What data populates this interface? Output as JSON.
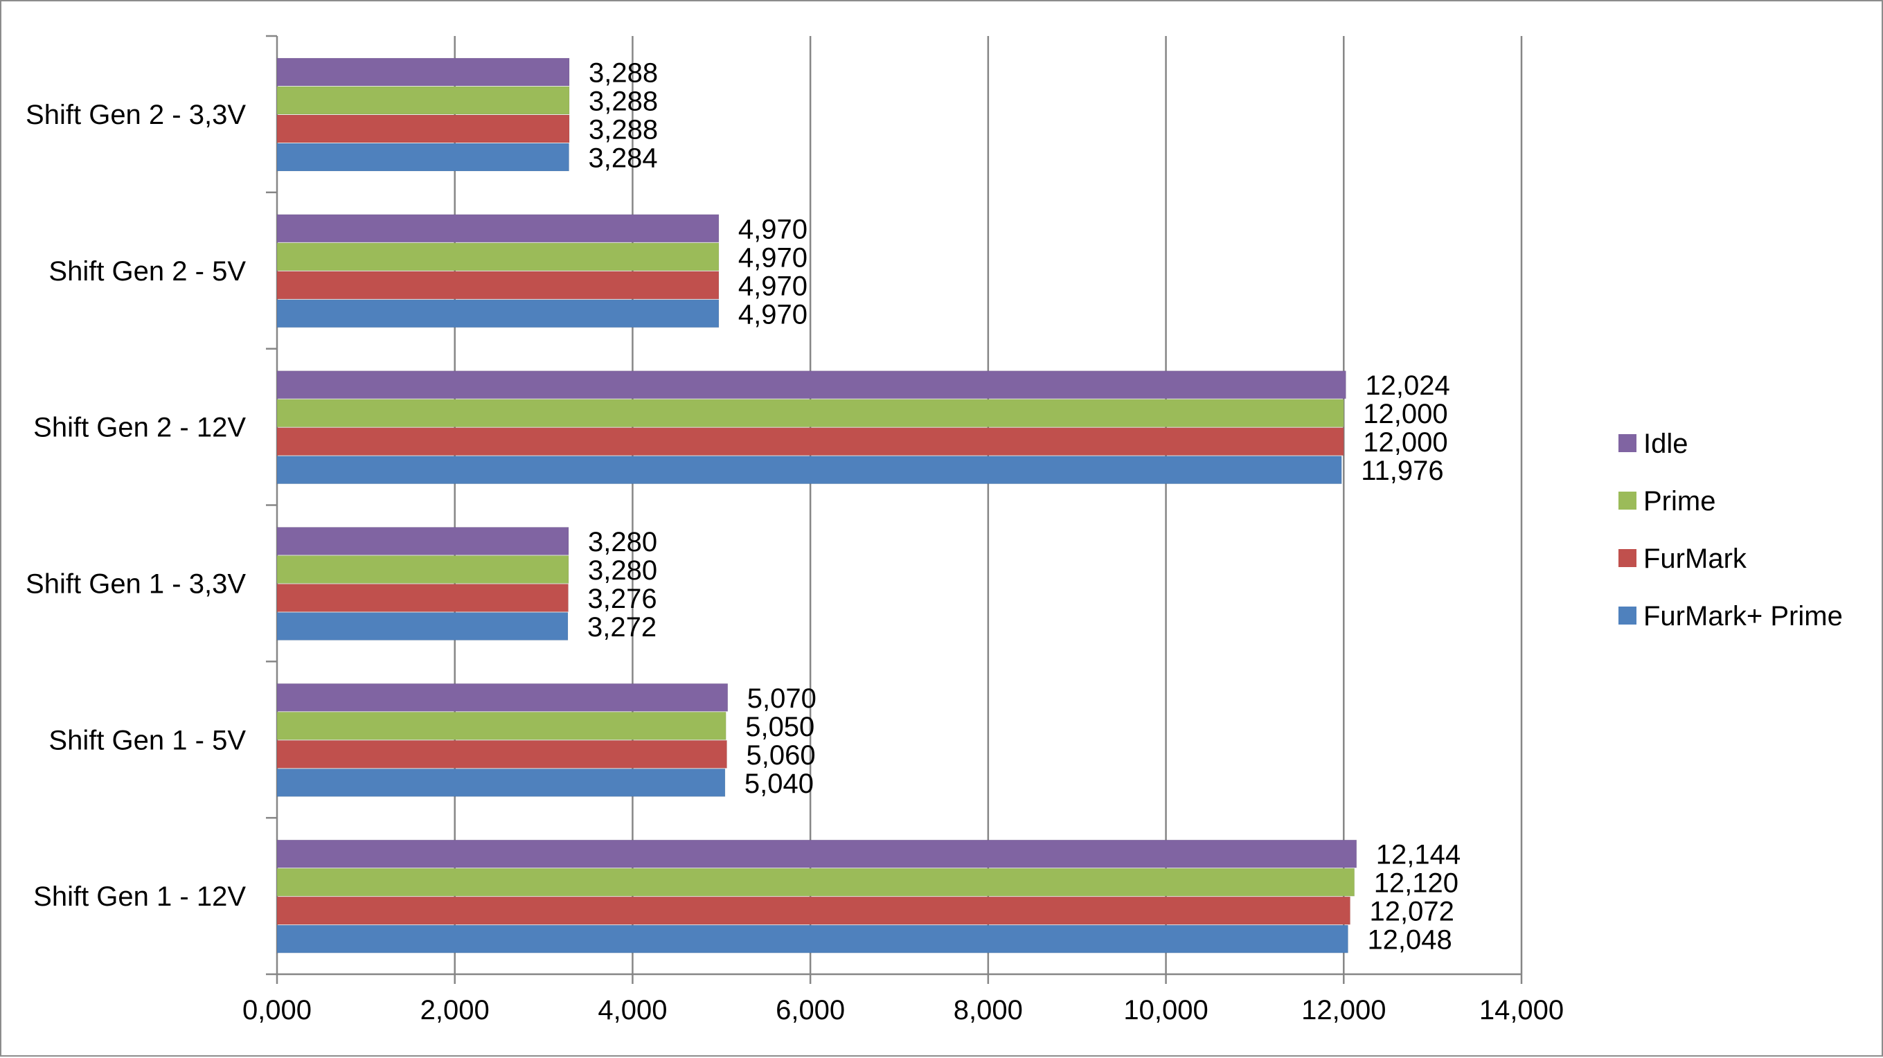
{
  "chart_data": {
    "type": "bar",
    "orientation": "horizontal",
    "title": "",
    "xlabel": "",
    "ylabel": "",
    "categories": [
      "Shift Gen 2 - 3,3V",
      "Shift Gen 2 - 5V",
      "Shift Gen 2 - 12V",
      "Shift Gen 1 - 3,3V",
      "Shift Gen 1 - 5V",
      "Shift Gen 1 - 12V"
    ],
    "series": [
      {
        "name": "Idle",
        "color": "#8064a2",
        "values": [
          3.288,
          4.97,
          12.024,
          3.28,
          5.07,
          12.144
        ],
        "labels": [
          "3,288",
          "4,970",
          "12,024",
          "3,280",
          "5,070",
          "12,144"
        ]
      },
      {
        "name": "Prime",
        "color": "#9bbb59",
        "values": [
          3.288,
          4.97,
          12.0,
          3.28,
          5.05,
          12.12
        ],
        "labels": [
          "3,288",
          "4,970",
          "12,000",
          "3,280",
          "5,050",
          "12,120"
        ]
      },
      {
        "name": "FurMark",
        "color": "#c0504d",
        "values": [
          3.288,
          4.97,
          12.0,
          3.276,
          5.06,
          12.072
        ],
        "labels": [
          "3,288",
          "4,970",
          "12,000",
          "3,276",
          "5,060",
          "12,072"
        ]
      },
      {
        "name": "FurMark+ Prime",
        "color": "#4f81bd",
        "values": [
          3.284,
          4.97,
          11.976,
          3.272,
          5.04,
          12.048
        ],
        "labels": [
          "3,284",
          "4,970",
          "11,976",
          "3,272",
          "5,040",
          "12,048"
        ]
      }
    ],
    "xlim": [
      0,
      14
    ],
    "x_ticks": [
      0,
      2,
      4,
      6,
      8,
      10,
      12,
      14
    ],
    "x_tick_labels": [
      "0,000",
      "2,000",
      "4,000",
      "6,000",
      "8,000",
      "10,000",
      "12,000",
      "14,000"
    ],
    "grid": "vertical",
    "legend": "right"
  }
}
